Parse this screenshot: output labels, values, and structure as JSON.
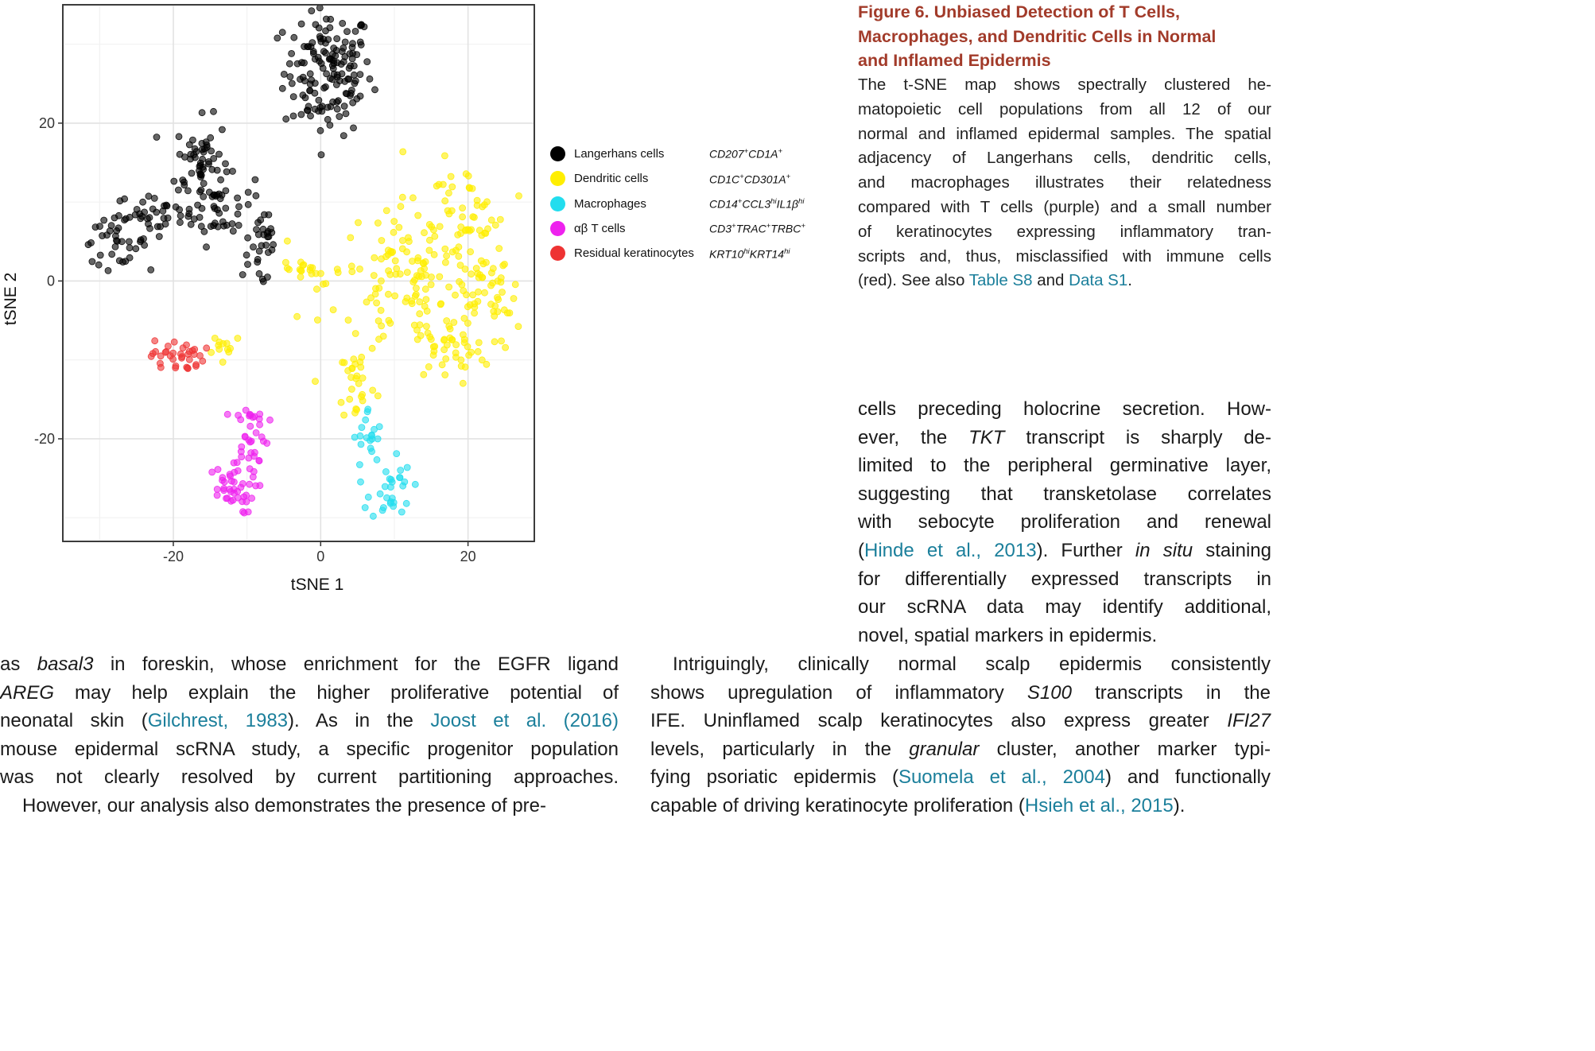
{
  "chart_data": {
    "type": "scatter",
    "xlabel": "tSNE 1",
    "ylabel": "tSNE 2",
    "xlim": [
      -35,
      29
    ],
    "ylim": [
      -33,
      35
    ],
    "xticks": [
      -20,
      0,
      20
    ],
    "yticks": [
      -20,
      0,
      20
    ],
    "xtick_labels": [
      "-20",
      "0",
      "20"
    ],
    "ytick_labels": [
      "-20",
      "0",
      "20"
    ],
    "grid": true,
    "legend_position": "right",
    "point_alpha": 0.6,
    "series": [
      {
        "name": "Langerhans cells",
        "markers": "CD207+CD1A+",
        "color": "#000000",
        "clusters": [
          {
            "cx": 1,
            "cy": 26.5,
            "sx": 3.0,
            "sy": 4.0,
            "n": 150
          },
          {
            "cx": -16,
            "cy": 15,
            "sx": 1.8,
            "sy": 2.8,
            "n": 60
          },
          {
            "cx": -14,
            "cy": 9,
            "sx": 2.5,
            "sy": 2.2,
            "n": 40
          },
          {
            "cx": -22,
            "cy": 8.5,
            "sx": 3.0,
            "sy": 1.3,
            "n": 35
          },
          {
            "cx": -28,
            "cy": 5,
            "sx": 2.2,
            "sy": 1.4,
            "n": 35
          },
          {
            "cx": -8,
            "cy": 4.5,
            "sx": 1.3,
            "sy": 2.0,
            "n": 25
          },
          {
            "cx": -7.5,
            "cy": 0.5,
            "sx": 0.6,
            "sy": 0.5,
            "n": 4
          }
        ]
      },
      {
        "name": "Dendritic cells",
        "markers": "CD1C+CD301A+",
        "color": "#ffee00",
        "clusters": [
          {
            "cx": 14,
            "cy": 0,
            "sx": 6.5,
            "sy": 5.0,
            "n": 160
          },
          {
            "cx": 19,
            "cy": 8,
            "sx": 2.5,
            "sy": 3.5,
            "n": 40
          },
          {
            "cx": 17.5,
            "cy": -8.5,
            "sx": 3.0,
            "sy": 2.0,
            "n": 35
          },
          {
            "cx": 24,
            "cy": -3,
            "sx": 1.5,
            "sy": 3.0,
            "n": 25
          },
          {
            "cx": -2,
            "cy": 1.5,
            "sx": 2.5,
            "sy": 1.0,
            "n": 18
          },
          {
            "cx": 5,
            "cy": -13,
            "sx": 1.3,
            "sy": 2.5,
            "n": 25
          },
          {
            "cx": -13,
            "cy": -8,
            "sx": 1.5,
            "sy": 0.8,
            "n": 12
          }
        ]
      },
      {
        "name": "Macrophages",
        "markers": "CD14+CCL3hiIL1βhi",
        "color": "#22ddee",
        "clusters": [
          {
            "cx": 6.5,
            "cy": -20,
            "sx": 1.0,
            "sy": 2.0,
            "n": 18
          },
          {
            "cx": 9.5,
            "cy": -26,
            "sx": 1.4,
            "sy": 2.3,
            "n": 30
          }
        ]
      },
      {
        "name": "αβ T cells",
        "markers": "CD3+TRACTRBC+",
        "color": "#ee22ee",
        "clusters": [
          {
            "cx": -9.5,
            "cy": -19.5,
            "sx": 1.2,
            "sy": 2.4,
            "n": 35
          },
          {
            "cx": -12.5,
            "cy": -26.5,
            "sx": 1.8,
            "sy": 1.5,
            "n": 40
          }
        ]
      },
      {
        "name": "Residual keratinocytes",
        "markers": "KRT10hiKRT14hi",
        "color": "#ee3333",
        "clusters": [
          {
            "cx": -19.5,
            "cy": -9.5,
            "sx": 1.8,
            "sy": 1.0,
            "n": 35
          }
        ]
      }
    ]
  },
  "legend": [
    {
      "label": "Langerhans cells",
      "color": "#000000",
      "markers": [
        [
          "CD207",
          "+"
        ],
        [
          "CD1A",
          "+"
        ]
      ]
    },
    {
      "label": "Dendritic cells",
      "color": "#ffee00",
      "markers": [
        [
          "CD1C",
          "+"
        ],
        [
          "CD301A",
          "+"
        ]
      ]
    },
    {
      "label": "Macrophages",
      "color": "#22ddee",
      "markers": [
        [
          "CD14",
          "+"
        ],
        [
          "CCL3",
          "hi"
        ],
        [
          "IL1β",
          "hi"
        ]
      ]
    },
    {
      "label": "αβ T cells",
      "color": "#ee22ee",
      "markers": [
        [
          "CD3",
          "+"
        ],
        [
          "TRAC",
          "+"
        ],
        [
          "TRBC",
          "+"
        ]
      ]
    },
    {
      "label": "Residual keratinocytes",
      "color": "#ee3333",
      "markers": [
        [
          "KRT10",
          "hi"
        ],
        [
          "KRT14",
          "hi"
        ]
      ]
    }
  ],
  "figure": {
    "title_lines": [
      "Figure 6. Unbiased Detection of T Cells,",
      "Macrophages, and Dendritic Cells in Normal",
      "and Inflamed Epidermis"
    ],
    "caption_lines": [
      [
        "The t-SNE map shows spectrally clustered he-"
      ],
      [
        "matopoietic cell populations from all 12 of our"
      ],
      [
        "normal and inflamed epidermal samples. The spatial"
      ],
      [
        "adjacency of Langerhans cells, dendritic cells,"
      ],
      [
        "and macrophages illustrates their relatedness"
      ],
      [
        "compared with T cells (purple) and a small number"
      ],
      [
        "of keratinocytes expressing inflammatory tran-"
      ],
      [
        "scripts and, thus, misclassified with immune cells"
      ],
      [
        "(red). See also ",
        {
          "t": "Table S8",
          "link": true
        },
        " and ",
        {
          "t": "Data S1",
          "link": true
        },
        "."
      ]
    ]
  },
  "body": {
    "upper_right_lines": [
      [
        "cells preceding holocrine secretion. How-"
      ],
      [
        "ever, the ",
        {
          "t": "TKT",
          "i": true
        },
        " transcript is sharply de-"
      ],
      [
        "limited to the peripheral germinative layer,"
      ],
      [
        "suggesting that transketolase correlates"
      ],
      [
        "with sebocyte proliferation and renewal"
      ],
      [
        "(",
        {
          "t": "Hinde et al., 2013",
          "link": true
        },
        "). Further ",
        {
          "t": "in situ",
          "i": true
        },
        " staining"
      ],
      [
        "for differentially expressed transcripts in"
      ],
      [
        "our scRNA data may identify additional,"
      ],
      [
        "novel, spatial markers in epidermis."
      ]
    ],
    "left_lines": [
      [
        "as ",
        {
          "t": "basal3",
          "i": true
        },
        " in foreskin, whose enrichment for the EGFR ligand"
      ],
      [
        {
          "t": "AREG",
          "i": true
        },
        " may help explain the higher proliferative potential of"
      ],
      [
        "neonatal skin (",
        {
          "t": "Gilchrest, 1983",
          "link": true
        },
        "). As in the ",
        {
          "t": "Joost et al. (2016)",
          "link": true
        }
      ],
      [
        "mouse epidermal scRNA study, a specific progenitor population"
      ],
      [
        "was not clearly resolved by current partitioning approaches."
      ],
      [
        "However, our analysis also demonstrates the presence of pre-"
      ]
    ],
    "right_lines": [
      [
        "Intriguingly, clinically normal scalp epidermis consistently"
      ],
      [
        "shows upregulation of inflammatory ",
        {
          "t": "S100",
          "i": true
        },
        " transcripts in the"
      ],
      [
        "IFE. Uninflamed scalp keratinocytes also express greater ",
        {
          "t": "IFI27",
          "i": true
        }
      ],
      [
        "levels, particularly in the ",
        {
          "t": "granular",
          "i": true
        },
        " cluster, another marker typi-"
      ],
      [
        "fying psoriatic epidermis (",
        {
          "t": "Suomela et al., 2004",
          "link": true
        },
        ") and functionally"
      ],
      [
        "capable of driving keratinocyte proliferation (",
        {
          "t": "Hsieh et al., 2015",
          "link": true
        },
        ")."
      ]
    ]
  }
}
